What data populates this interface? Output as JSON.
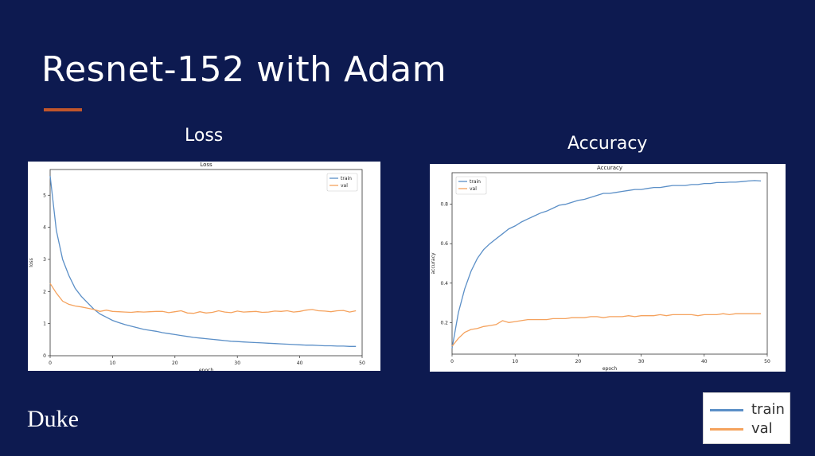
{
  "slide": {
    "title": "Resnet-152 with Adam",
    "logo": "Duke",
    "accent_color": "#c1562b",
    "background_color": "#0d1a50"
  },
  "headings": {
    "loss": "Loss",
    "accuracy": "Accuracy"
  },
  "legend": {
    "entries": [
      {
        "label": "train",
        "color": "#5b8fc7"
      },
      {
        "label": "val",
        "color": "#f5a25d"
      }
    ]
  },
  "chart_data": [
    {
      "type": "line",
      "title": "Loss",
      "xlabel": "epoch",
      "ylabel": "loss",
      "xlim": [
        0,
        50
      ],
      "ylim": [
        0,
        5.8
      ],
      "xticks": [
        0,
        10,
        20,
        30,
        40,
        50
      ],
      "yticks": [
        0,
        1,
        2,
        3,
        4,
        5
      ],
      "legend_position": "top-right",
      "x": [
        0,
        1,
        2,
        3,
        4,
        5,
        6,
        7,
        8,
        9,
        10,
        11,
        12,
        13,
        14,
        15,
        16,
        17,
        18,
        19,
        20,
        21,
        22,
        23,
        24,
        25,
        26,
        27,
        28,
        29,
        30,
        31,
        32,
        33,
        34,
        35,
        36,
        37,
        38,
        39,
        40,
        41,
        42,
        43,
        44,
        45,
        46,
        47,
        48,
        49
      ],
      "series": [
        {
          "name": "train",
          "color": "#5b8fc7",
          "values": [
            5.6,
            3.9,
            3.0,
            2.5,
            2.1,
            1.85,
            1.65,
            1.45,
            1.3,
            1.2,
            1.1,
            1.03,
            0.97,
            0.92,
            0.87,
            0.82,
            0.79,
            0.76,
            0.72,
            0.69,
            0.66,
            0.63,
            0.6,
            0.57,
            0.55,
            0.53,
            0.51,
            0.49,
            0.47,
            0.45,
            0.44,
            0.43,
            0.42,
            0.41,
            0.4,
            0.39,
            0.38,
            0.37,
            0.36,
            0.35,
            0.34,
            0.33,
            0.33,
            0.32,
            0.31,
            0.31,
            0.3,
            0.3,
            0.29,
            0.29
          ]
        },
        {
          "name": "val",
          "color": "#f5a25d",
          "values": [
            2.25,
            1.95,
            1.7,
            1.6,
            1.55,
            1.52,
            1.48,
            1.44,
            1.38,
            1.42,
            1.38,
            1.37,
            1.36,
            1.35,
            1.37,
            1.36,
            1.37,
            1.38,
            1.38,
            1.34,
            1.37,
            1.4,
            1.33,
            1.32,
            1.37,
            1.33,
            1.35,
            1.4,
            1.36,
            1.34,
            1.39,
            1.36,
            1.37,
            1.38,
            1.35,
            1.36,
            1.39,
            1.38,
            1.4,
            1.36,
            1.38,
            1.42,
            1.44,
            1.4,
            1.39,
            1.37,
            1.4,
            1.41,
            1.36,
            1.4
          ]
        }
      ]
    },
    {
      "type": "line",
      "title": "Accuracy",
      "xlabel": "epoch",
      "ylabel": "accuracy",
      "xlim": [
        0,
        50
      ],
      "ylim": [
        0.04,
        0.96
      ],
      "xticks": [
        0,
        10,
        20,
        30,
        40,
        50
      ],
      "yticks": [
        0.2,
        0.4,
        0.6,
        0.8
      ],
      "legend_position": "top-left",
      "x": [
        0,
        1,
        2,
        3,
        4,
        5,
        6,
        7,
        8,
        9,
        10,
        11,
        12,
        13,
        14,
        15,
        16,
        17,
        18,
        19,
        20,
        21,
        22,
        23,
        24,
        25,
        26,
        27,
        28,
        29,
        30,
        31,
        32,
        33,
        34,
        35,
        36,
        37,
        38,
        39,
        40,
        41,
        42,
        43,
        44,
        45,
        46,
        47,
        48,
        49
      ],
      "series": [
        {
          "name": "train",
          "color": "#5b8fc7",
          "values": [
            0.07,
            0.25,
            0.37,
            0.46,
            0.525,
            0.57,
            0.6,
            0.625,
            0.65,
            0.675,
            0.69,
            0.71,
            0.725,
            0.74,
            0.755,
            0.765,
            0.78,
            0.795,
            0.8,
            0.81,
            0.82,
            0.825,
            0.835,
            0.845,
            0.855,
            0.855,
            0.86,
            0.865,
            0.87,
            0.875,
            0.875,
            0.88,
            0.885,
            0.885,
            0.89,
            0.895,
            0.895,
            0.895,
            0.9,
            0.9,
            0.905,
            0.905,
            0.91,
            0.91,
            0.912,
            0.912,
            0.915,
            0.918,
            0.92,
            0.918
          ]
        },
        {
          "name": "val",
          "color": "#f5a25d",
          "values": [
            0.08,
            0.12,
            0.15,
            0.165,
            0.17,
            0.18,
            0.185,
            0.19,
            0.21,
            0.2,
            0.205,
            0.21,
            0.215,
            0.215,
            0.215,
            0.215,
            0.22,
            0.22,
            0.22,
            0.225,
            0.225,
            0.225,
            0.23,
            0.23,
            0.225,
            0.23,
            0.23,
            0.23,
            0.235,
            0.23,
            0.235,
            0.235,
            0.235,
            0.24,
            0.235,
            0.24,
            0.24,
            0.24,
            0.24,
            0.235,
            0.24,
            0.24,
            0.24,
            0.245,
            0.24,
            0.245,
            0.245,
            0.245,
            0.245,
            0.245
          ]
        }
      ]
    }
  ]
}
